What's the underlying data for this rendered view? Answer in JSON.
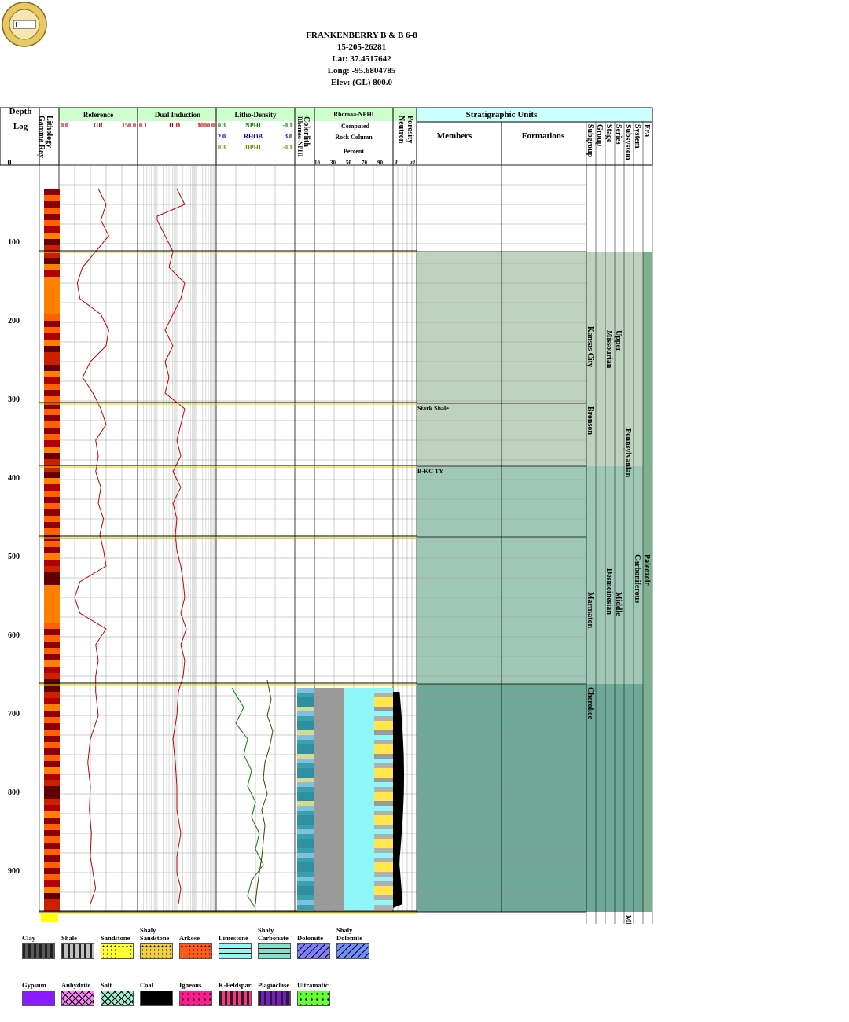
{
  "header": {
    "well_name": "FRANKENBERRY B & B 6-8",
    "api": "15-205-26281",
    "lat": "Lat: 37.4517642",
    "long": "Long: -95.6804785",
    "elev": "Elev: (GL) 800.0"
  },
  "columns": {
    "depth": {
      "title": "Depth",
      "sub": "Log",
      "top": "0"
    },
    "lithology": {
      "title": "Lithology",
      "sub": "Gamma Ray"
    },
    "reference": {
      "title": "Reference",
      "min": "0.0",
      "curve": "GR",
      "max": "150.0"
    },
    "dual_induction": {
      "title": "Dual Induction",
      "min": "0.1",
      "curve": "ILD",
      "max": "1000.0"
    },
    "litho_density": {
      "title": "Litho-Density",
      "rows": [
        {
          "min": "0.3",
          "curve": "NPHI",
          "max": "-0.1",
          "color": "#008000"
        },
        {
          "min": "2.0",
          "curve": "RHOB",
          "max": "3.0",
          "color": "#0000a0"
        },
        {
          "min": "0.3",
          "curve": "DPHI",
          "max": "-0.1",
          "color": "#808000"
        }
      ]
    },
    "colorlith": {
      "title": "Colorlith",
      "sub": "Rhomaa-NPHI"
    },
    "rhomaa_nphi": {
      "title": "Rhomaa-NPHI",
      "l1": "Computed",
      "l2": "Rock Column",
      "l3": "Percent",
      "ticks": [
        "10",
        "30",
        "50",
        "70",
        "90"
      ]
    },
    "porosity": {
      "title": "Porosity",
      "sub": "Neutron",
      "ticks": [
        "0",
        "50"
      ]
    },
    "strat": {
      "title": "Stratigraphic Units",
      "members": "Members",
      "formations": "Formations",
      "ranks": [
        "Subgroup",
        "Group",
        "Stage",
        "Series",
        "Subsystem",
        "System",
        "Era"
      ]
    }
  },
  "chart_data": {
    "type": "well_log",
    "depth_range": [
      0,
      950
    ],
    "depth_labels": [
      "100",
      "200",
      "300",
      "400",
      "500",
      "600",
      "700",
      "800",
      "900"
    ],
    "gr_trace": [
      [
        30,
        75
      ],
      [
        50,
        90
      ],
      [
        70,
        80
      ],
      [
        90,
        95
      ],
      [
        110,
        70
      ],
      [
        130,
        45
      ],
      [
        150,
        35
      ],
      [
        170,
        40
      ],
      [
        190,
        80
      ],
      [
        210,
        95
      ],
      [
        230,
        90
      ],
      [
        250,
        60
      ],
      [
        270,
        45
      ],
      [
        290,
        65
      ],
      [
        310,
        80
      ],
      [
        330,
        90
      ],
      [
        350,
        70
      ],
      [
        370,
        75
      ],
      [
        390,
        70
      ],
      [
        410,
        80
      ],
      [
        430,
        75
      ],
      [
        450,
        85
      ],
      [
        470,
        78
      ],
      [
        490,
        85
      ],
      [
        510,
        90
      ],
      [
        530,
        40
      ],
      [
        550,
        30
      ],
      [
        570,
        40
      ],
      [
        590,
        90
      ],
      [
        610,
        70
      ],
      [
        630,
        75
      ],
      [
        650,
        70
      ],
      [
        670,
        70
      ],
      [
        700,
        75
      ],
      [
        730,
        60
      ],
      [
        760,
        55
      ],
      [
        790,
        60
      ],
      [
        820,
        58
      ],
      [
        850,
        62
      ],
      [
        880,
        60
      ],
      [
        900,
        65
      ],
      [
        920,
        70
      ],
      [
        940,
        60
      ]
    ],
    "ild_trace": [
      [
        30,
        50
      ],
      [
        50,
        60
      ],
      [
        65,
        25
      ],
      [
        70,
        25
      ],
      [
        90,
        35
      ],
      [
        110,
        45
      ],
      [
        130,
        40
      ],
      [
        150,
        60
      ],
      [
        170,
        55
      ],
      [
        190,
        45
      ],
      [
        210,
        35
      ],
      [
        230,
        45
      ],
      [
        250,
        35
      ],
      [
        270,
        40
      ],
      [
        290,
        35
      ],
      [
        310,
        60
      ],
      [
        330,
        55
      ],
      [
        350,
        50
      ],
      [
        370,
        55
      ],
      [
        390,
        45
      ],
      [
        410,
        55
      ],
      [
        430,
        45
      ],
      [
        450,
        50
      ],
      [
        470,
        48
      ],
      [
        490,
        50
      ],
      [
        510,
        55
      ],
      [
        530,
        58
      ],
      [
        550,
        60
      ],
      [
        570,
        55
      ],
      [
        590,
        62
      ],
      [
        610,
        55
      ],
      [
        630,
        60
      ],
      [
        650,
        58
      ],
      [
        670,
        52
      ],
      [
        700,
        50
      ],
      [
        730,
        45
      ],
      [
        760,
        48
      ],
      [
        790,
        50
      ],
      [
        820,
        50
      ],
      [
        850,
        55
      ],
      [
        880,
        50
      ],
      [
        900,
        50
      ],
      [
        920,
        55
      ],
      [
        940,
        52
      ]
    ],
    "nphi_trace": [
      [
        665,
        20
      ],
      [
        690,
        35
      ],
      [
        710,
        25
      ],
      [
        730,
        40
      ],
      [
        750,
        35
      ],
      [
        770,
        45
      ],
      [
        790,
        40
      ],
      [
        810,
        50
      ],
      [
        830,
        45
      ],
      [
        850,
        55
      ],
      [
        870,
        50
      ],
      [
        890,
        60
      ],
      [
        910,
        45
      ],
      [
        930,
        40
      ],
      [
        945,
        50
      ]
    ],
    "dphi_trace": [
      [
        655,
        65
      ],
      [
        680,
        70
      ],
      [
        700,
        65
      ],
      [
        720,
        72
      ],
      [
        740,
        68
      ],
      [
        760,
        62
      ],
      [
        780,
        60
      ],
      [
        800,
        65
      ],
      [
        820,
        58
      ],
      [
        840,
        62
      ],
      [
        860,
        60
      ],
      [
        880,
        58
      ],
      [
        900,
        55
      ],
      [
        920,
        52
      ],
      [
        940,
        50
      ]
    ],
    "strat_bands": [
      {
        "top": 110,
        "bottom": 383,
        "color": "#bfd1bf"
      },
      {
        "top": 383,
        "bottom": 660,
        "color": "#9fc7b8"
      },
      {
        "top": 660,
        "bottom": 950,
        "color": "#6fa897"
      }
    ],
    "era_band": {
      "top": 110,
      "bottom": 950,
      "color": "#7fb08f"
    },
    "boundaries": [
      110,
      303,
      383,
      473,
      660,
      950
    ],
    "members": [
      {
        "depth": 305,
        "name": "Stark Shale"
      },
      {
        "depth": 385,
        "name": "B-KC TY"
      }
    ],
    "units": [
      {
        "rank": "Subgroup",
        "name": "Kansas City",
        "top": 110,
        "bottom": 303
      },
      {
        "rank": "Subgroup",
        "name": "Bronson",
        "top": 303,
        "bottom": 383
      },
      {
        "rank": "Subgroup",
        "name": "Marmaton",
        "top": 473,
        "bottom": 660
      },
      {
        "rank": "Subgroup",
        "name": "Cherokee",
        "top": 660,
        "bottom": 760
      },
      {
        "rank": "Stage",
        "name": "Missourian",
        "top": 110,
        "bottom": 383
      },
      {
        "rank": "Stage",
        "name": "Desmoinesian",
        "top": 473,
        "bottom": 660
      },
      {
        "rank": "Series",
        "name": "Upper",
        "top": 110,
        "bottom": 383
      },
      {
        "rank": "Series",
        "name": "Middle",
        "top": 473,
        "bottom": 660
      },
      {
        "rank": "Subsystem",
        "name": "Pennsylvanian",
        "top": 303,
        "bottom": 473
      },
      {
        "rank": "System",
        "name": "Carboniferous",
        "top": 473,
        "bottom": 660
      },
      {
        "rank": "Era",
        "name": "Paleozoic",
        "top": 473,
        "bottom": 660
      },
      {
        "rank": "Subsystem",
        "name": "Mississippian",
        "top": 950,
        "bottom": 1020
      }
    ]
  },
  "legend": [
    {
      "name": "Clay",
      "color": "#5a5a5a",
      "pattern": "dash-dark"
    },
    {
      "name": "Shale",
      "color": "#c0c0c0",
      "pattern": "dash"
    },
    {
      "name": "Sandstone",
      "color": "#ffff33",
      "pattern": "dots"
    },
    {
      "name": "Shaly Sandstone",
      "color": "#f0d040",
      "pattern": "dash-dots"
    },
    {
      "name": "Arkose",
      "color": "#ff5a1a",
      "pattern": "dots"
    },
    {
      "name": "Limestone",
      "color": "#8ff7f7",
      "pattern": "brick"
    },
    {
      "name": "Shaly Carbonate",
      "color": "#7fe0d0",
      "pattern": "brick-dash"
    },
    {
      "name": "Dolomite",
      "color": "#8080ff",
      "pattern": "slant"
    },
    {
      "name": "Shaly Dolomite",
      "color": "#6f8fff",
      "pattern": "slant"
    },
    {
      "name": "Gypsum",
      "color": "#8a1aff",
      "pattern": "none"
    },
    {
      "name": "Anhydrite",
      "color": "#ff80ff",
      "pattern": "chevron"
    },
    {
      "name": "Salt",
      "color": "#9ff0d0",
      "pattern": "cross"
    },
    {
      "name": "Coal",
      "color": "#000000",
      "pattern": "none"
    },
    {
      "name": "Igneous",
      "color": "#ff1a8f",
      "pattern": "plus"
    },
    {
      "name": "K-Feldspar",
      "color": "#ff3380",
      "pattern": "dash"
    },
    {
      "name": "Plagioclase",
      "color": "#7a1acc",
      "pattern": "dash"
    },
    {
      "name": "Ultramafic",
      "color": "#66ff33",
      "pattern": "plus"
    }
  ]
}
